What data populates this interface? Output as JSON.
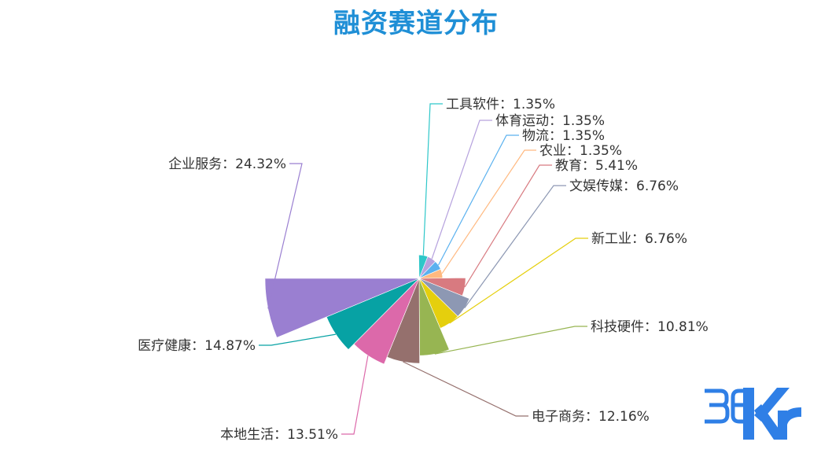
{
  "chart_data": {
    "type": "pie",
    "title": "融资赛道分布",
    "subtype": "rose",
    "slices": [
      {
        "label": "工具软件",
        "value": 1.35,
        "display": "工具软件：1.35%",
        "color": "#2ec7c9"
      },
      {
        "label": "体育运动",
        "value": 1.35,
        "display": "体育运动：1.35%",
        "color": "#b6a2de"
      },
      {
        "label": "物流",
        "value": 1.35,
        "display": "物流：1.35%",
        "color": "#5ab1ef"
      },
      {
        "label": "农业",
        "value": 1.35,
        "display": "农业：1.35%",
        "color": "#ffb980"
      },
      {
        "label": "教育",
        "value": 5.41,
        "display": "教育：5.41%",
        "color": "#d87a80"
      },
      {
        "label": "文娱传媒",
        "value": 6.76,
        "display": "文娱传媒：6.76%",
        "color": "#8d98b3"
      },
      {
        "label": "新工业",
        "value": 6.76,
        "display": "新工业：6.76%",
        "color": "#e5cf0d"
      },
      {
        "label": "科技硬件",
        "value": 10.81,
        "display": "科技硬件：10.81%",
        "color": "#97b552"
      },
      {
        "label": "电子商务",
        "value": 12.16,
        "display": "电子商务：12.16%",
        "color": "#95706d"
      },
      {
        "label": "本地生活",
        "value": 13.51,
        "display": "本地生活：13.51%",
        "color": "#dc69aa"
      },
      {
        "label": "医疗健康",
        "value": 14.87,
        "display": "医疗健康：14.87%",
        "color": "#07a2a4"
      },
      {
        "label": "企业服务",
        "value": 24.32,
        "display": "企业服务：24.32%",
        "color": "#9a7fd1"
      }
    ]
  },
  "watermark": {
    "text": "36Kr",
    "color": "#2f7fe6"
  }
}
